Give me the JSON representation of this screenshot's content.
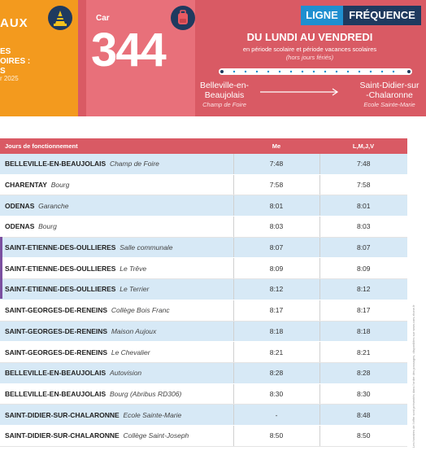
{
  "header": {
    "left_title": "AUX",
    "left_lines": [
      "ES",
      "OIRES :",
      "S"
    ],
    "left_date": "r 2025",
    "car_label": "Car",
    "line_number": "344",
    "badge_ligne": "LIGNE",
    "badge_frequence": "FRÉQUENCE",
    "days": "DU LUNDI AU VENDREDI",
    "period": "en période scolaire et période vacances scolaires",
    "holidays": "(hors jours fériés)",
    "origin_line1": "Belleville-en-",
    "origin_line2": "Beaujolais",
    "origin_stop": "Champ de Foire",
    "destination_line1": "Saint-Didier-sur",
    "destination_line2": "-Chalaronne",
    "destination_stop": "Ecole Sainte-Marie",
    "colors": {
      "header_red": "#d95a64",
      "orange": "#f39a1e",
      "navy": "#1f3a5f",
      "blue": "#1f8fd0",
      "row_highlight": "#d7e9f6"
    }
  },
  "table": {
    "headers": [
      "Jours de fonctionnement",
      "Me",
      "L,M,J,V"
    ],
    "rows": [
      {
        "commune": "BELLEVILLE-EN-BEAUJOLAIS",
        "stop": "Champ de Foire",
        "me": "7:48",
        "lmjv": "7:48"
      },
      {
        "commune": "CHARENTAY",
        "stop": "Bourg",
        "me": "7:58",
        "lmjv": "7:58"
      },
      {
        "commune": "ODENAS",
        "stop": "Garanche",
        "me": "8:01",
        "lmjv": "8:01"
      },
      {
        "commune": "ODENAS",
        "stop": "Bourg",
        "me": "8:03",
        "lmjv": "8:03"
      },
      {
        "commune": "SAINT-ETIENNE-DES-OULLIERES",
        "stop": "Salle communale",
        "me": "8:07",
        "lmjv": "8:07"
      },
      {
        "commune": "SAINT-ETIENNE-DES-OULLIERES",
        "stop": "Le Trêve",
        "me": "8:09",
        "lmjv": "8:09"
      },
      {
        "commune": "SAINT-ETIENNE-DES-OULLIERES",
        "stop": "Le Terrier",
        "me": "8:12",
        "lmjv": "8:12"
      },
      {
        "commune": "SAINT-GEORGES-DE-RENEINS",
        "stop": "Collège Bois Franc",
        "me": "8:17",
        "lmjv": "8:17"
      },
      {
        "commune": "SAINT-GEORGES-DE-RENEINS",
        "stop": "Maison Aujoux",
        "me": "8:18",
        "lmjv": "8:18"
      },
      {
        "commune": "SAINT-GEORGES-DE-RENEINS",
        "stop": "Le Chevalier",
        "me": "8:21",
        "lmjv": "8:21"
      },
      {
        "commune": "BELLEVILLE-EN-BEAUJOLAIS",
        "stop": "Autovision",
        "me": "8:28",
        "lmjv": "8:28"
      },
      {
        "commune": "BELLEVILLE-EN-BEAUJOLAIS",
        "stop": "Bourg (Abribus RD306)",
        "me": "8:30",
        "lmjv": "8:30"
      },
      {
        "commune": "SAINT-DIDIER-SUR-CHALARONNE",
        "stop": "Ecole Sainte-Marie",
        "me": "-",
        "lmjv": "8:48"
      },
      {
        "commune": "SAINT-DIDIER-SUR-CHALARONNE",
        "stop": "Collège Saint-Joseph",
        "me": "8:50",
        "lmjv": "8:50"
      }
    ]
  },
  "side_note": "Les horaires de l'offre sont présentés dans l'ordre des passages, disponibles sur www.cars-rhone.fr"
}
